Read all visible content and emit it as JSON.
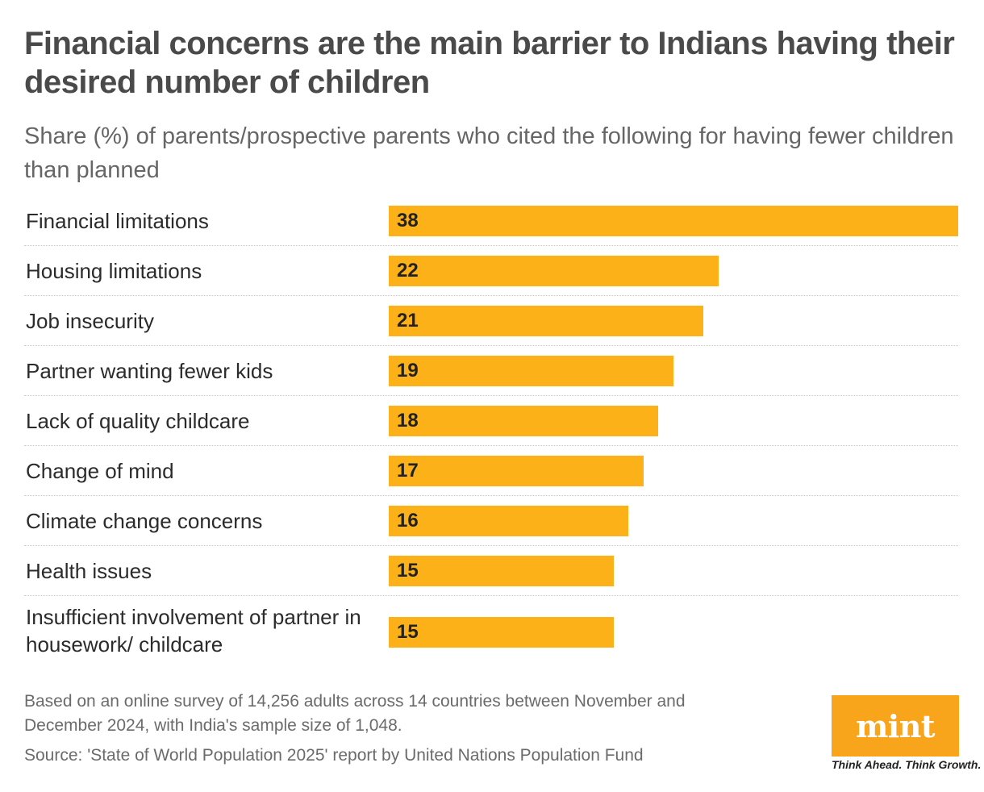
{
  "header": {
    "title": "Financial concerns are the main barrier to Indians having their desired number of children",
    "subtitle": "Share (%) of parents/prospective parents who cited the following for having fewer children than planned"
  },
  "chart_data": {
    "type": "bar",
    "orientation": "horizontal",
    "title": "Financial concerns are the main barrier to Indians having their desired number of children",
    "subtitle": "Share (%) of parents/prospective parents who cited the following for having fewer children than planned",
    "categories": [
      "Financial limitations",
      "Housing limitations",
      "Job insecurity",
      "Partner wanting fewer kids",
      "Lack of quality childcare",
      "Change of mind",
      "Climate change concerns",
      "Health issues",
      "Insufficient involvement of partner in housework/ childcare"
    ],
    "values": [
      38,
      22,
      21,
      19,
      18,
      17,
      16,
      15,
      15
    ],
    "xlim": [
      0,
      38
    ],
    "xlabel": "",
    "ylabel": "",
    "grid": false,
    "bar_color": "#fbb117"
  },
  "footer": {
    "note": "Based on an online survey of 14,256 adults across 14 countries between November and December 2024, with India's sample size of 1,048.",
    "source": "Source: 'State of World Population 2025' report by United Nations Population Fund",
    "logo_text": "mint",
    "tagline": "Think Ahead. Think Growth.",
    "logo_color": "#f8a51c"
  }
}
